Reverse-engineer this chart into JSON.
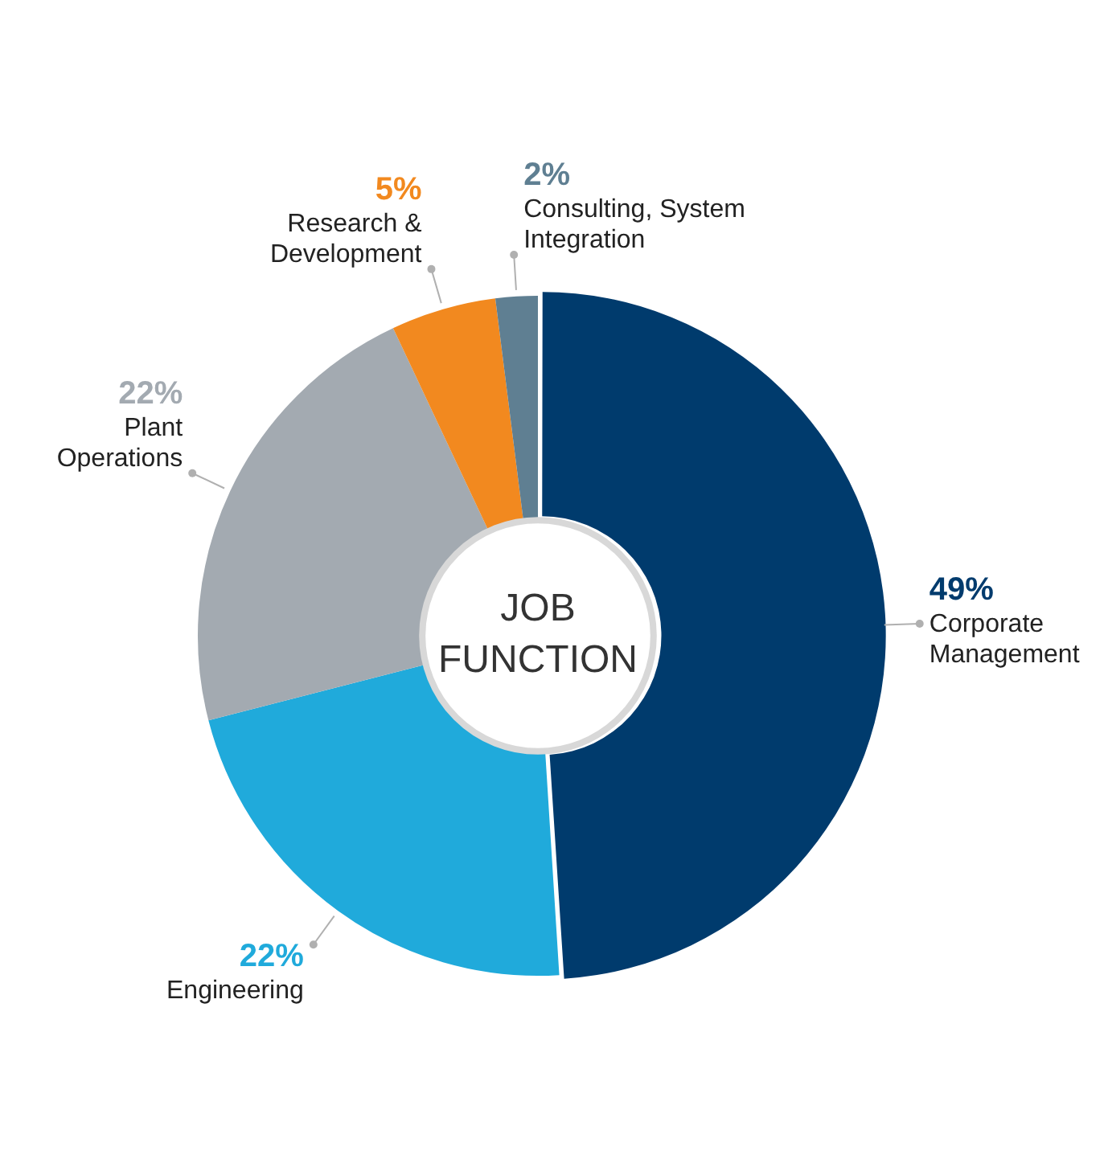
{
  "chart_data": {
    "type": "donut",
    "title": "JOB FUNCTION",
    "categories": [
      "Corporate Management",
      "Engineering",
      "Plant Operations",
      "Research & Development",
      "Consulting, System Integration"
    ],
    "values": [
      49,
      22,
      22,
      5,
      2
    ],
    "colors": [
      "#003b6d",
      "#20aadb",
      "#a3aab1",
      "#f2891f",
      "#5f7f92"
    ],
    "value_labels": [
      "49%",
      "22%",
      "22%",
      "5%",
      "2%"
    ],
    "legend": false
  }
}
